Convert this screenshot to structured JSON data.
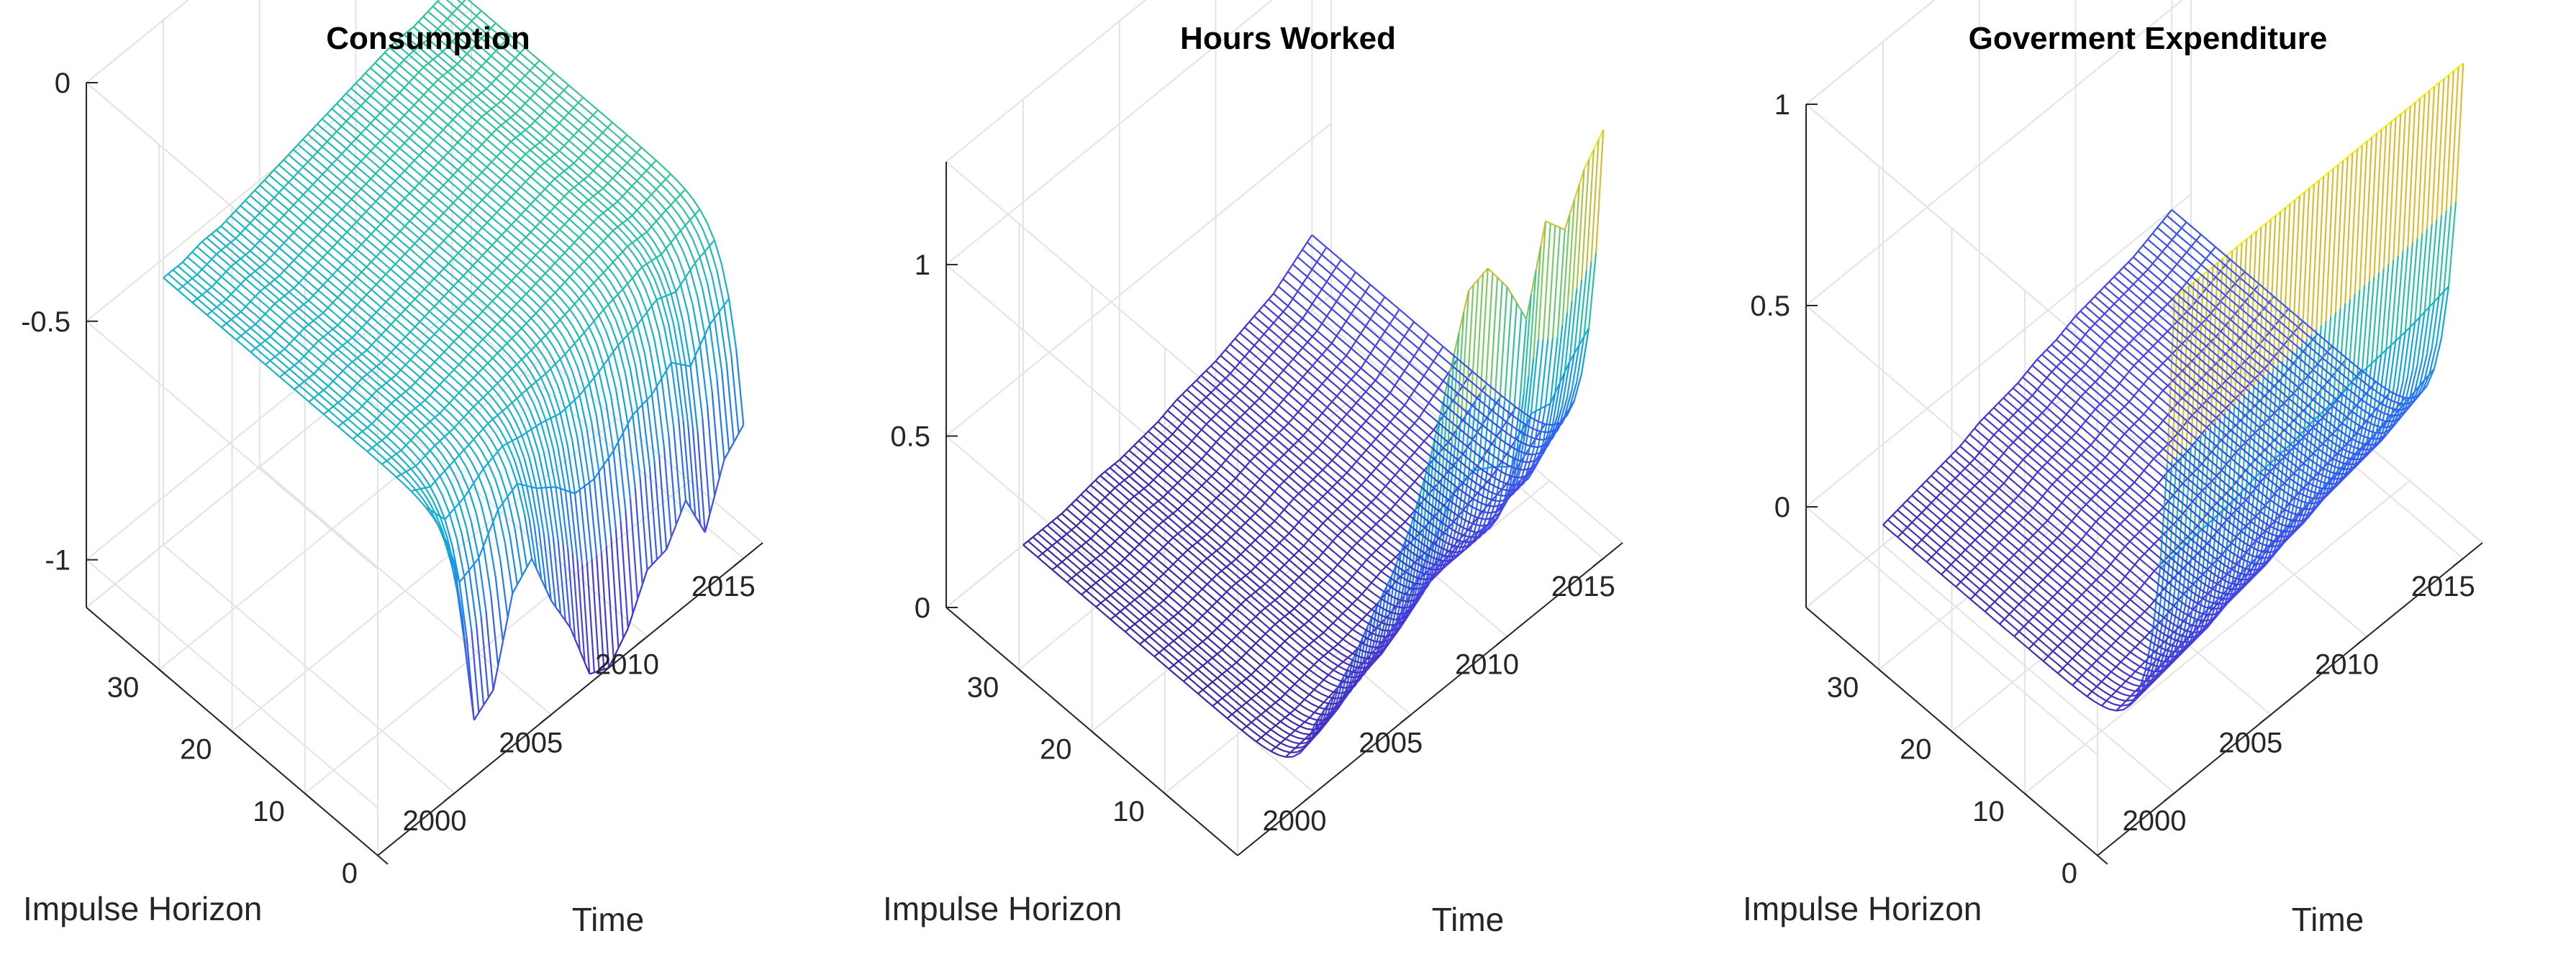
{
  "chart_data": [
    {
      "type": "surface",
      "title": "Consumption",
      "xlabel": "Time",
      "ylabel": "Impulse Horizon",
      "zlabel": "",
      "x_range": [
        1996,
        2016
      ],
      "y_range": [
        0,
        40
      ],
      "z_range": [
        -1.1,
        0
      ],
      "x_ticks": [
        2000,
        2005,
        2010,
        2015
      ],
      "y_ticks": [
        0,
        10,
        20,
        30
      ],
      "z_ticks": [
        -1,
        -0.5,
        0
      ],
      "z_tick_labels": [
        "-1",
        "-0.5",
        "0"
      ],
      "grid": true,
      "colormap": "parula",
      "time_points": [
        2000,
        2001,
        2002,
        2003,
        2004,
        2005,
        2006,
        2007,
        2008,
        2009,
        2010,
        2011,
        2012,
        2013,
        2014,
        2015
      ],
      "impact_response": [
        -0.62,
        -0.98,
        -0.95,
        -0.78,
        -0.74,
        -0.86,
        -0.95,
        -1.08,
        -1.1,
        -1.05,
        -0.96,
        -0.95,
        -0.88,
        -0.98,
        -0.86,
        -0.82
      ],
      "long_run_response": [
        -0.54,
        -0.54,
        -0.53,
        -0.53,
        -0.52,
        -0.51,
        -0.5,
        -0.49,
        -0.48,
        -0.47,
        -0.46,
        -0.45,
        -0.44,
        -0.44,
        -0.43,
        -0.42
      ],
      "horizons": [
        0,
        40
      ]
    },
    {
      "type": "surface",
      "title": "Hours Worked",
      "xlabel": "Time",
      "ylabel": "Impulse Horizon",
      "zlabel": "",
      "x_range": [
        1996,
        2016
      ],
      "y_range": [
        0,
        40
      ],
      "z_range": [
        0,
        1.3
      ],
      "x_ticks": [
        2000,
        2005,
        2010,
        2015
      ],
      "y_ticks": [
        10,
        20,
        30
      ],
      "z_ticks": [
        0,
        0.5,
        1
      ],
      "z_tick_labels": [
        "0",
        "0.5",
        "1"
      ],
      "grid": true,
      "colormap": "parula",
      "time_points": [
        2000,
        2001,
        2002,
        2003,
        2004,
        2005,
        2006,
        2007,
        2008,
        2009,
        2010,
        2011,
        2012,
        2013,
        2014,
        2015
      ],
      "impact_response": [
        0.2,
        0.24,
        0.3,
        0.38,
        0.45,
        0.55,
        0.7,
        0.9,
        1.1,
        1.12,
        1.02,
        0.88,
        1.12,
        1.05,
        1.18,
        1.25
      ],
      "long_run_response": [
        0.0,
        0.0,
        0.0,
        0.01,
        0.02,
        0.02,
        0.03,
        0.04,
        0.06,
        0.07,
        0.08,
        0.1,
        0.12,
        0.14,
        0.18,
        0.22
      ],
      "horizons": [
        0,
        40
      ]
    },
    {
      "type": "surface",
      "title": "Goverment Expenditure",
      "xlabel": "Time",
      "ylabel": "Impulse Horizon",
      "zlabel": "",
      "x_range": [
        1996,
        2016
      ],
      "y_range": [
        0,
        40
      ],
      "z_range": [
        -0.25,
        1
      ],
      "x_ticks": [
        2000,
        2005,
        2010,
        2015
      ],
      "y_ticks": [
        0,
        10,
        20,
        30
      ],
      "z_ticks": [
        0,
        0.5,
        1
      ],
      "z_tick_labels": [
        "0",
        "0.5",
        "1"
      ],
      "grid": true,
      "colormap": "parula",
      "time_points": [
        2000,
        2001,
        2002,
        2003,
        2004,
        2005,
        2006,
        2007,
        2008,
        2009,
        2010,
        2011,
        2012,
        2013,
        2014,
        2015
      ],
      "impact_response": [
        0.98,
        0.98,
        0.98,
        0.98,
        0.98,
        0.98,
        0.98,
        0.98,
        0.98,
        0.98,
        0.98,
        0.98,
        0.98,
        0.98,
        0.98,
        0.98
      ],
      "long_run_response": [
        -0.2,
        -0.19,
        -0.18,
        -0.17,
        -0.16,
        -0.14,
        -0.13,
        -0.12,
        -0.1,
        -0.09,
        -0.07,
        -0.06,
        -0.05,
        -0.04,
        -0.02,
        0.0
      ],
      "horizons": [
        0,
        40
      ]
    }
  ]
}
